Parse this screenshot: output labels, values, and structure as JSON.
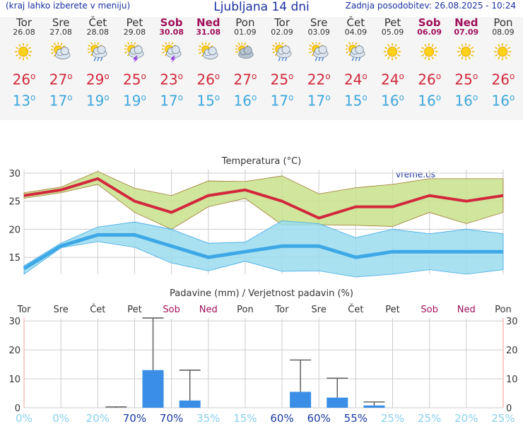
{
  "header": {
    "hint": "(kraj lahko izberete v meniju)",
    "title": "Ljubljana 14 dni",
    "update": "Zadnja posodobitev: 26.08.2025 - 10:24"
  },
  "days": [
    {
      "name": "Tor",
      "date": "26.08",
      "weekend": false,
      "icon": "sun-icon",
      "tmax": "26",
      "tmin": "13"
    },
    {
      "name": "Sre",
      "date": "27.08",
      "weekend": false,
      "icon": "sun-cloud-icon",
      "tmax": "27",
      "tmin": "17"
    },
    {
      "name": "Čet",
      "date": "28.08",
      "weekend": false,
      "icon": "sun-cloud-rain-icon",
      "tmax": "29",
      "tmin": "19"
    },
    {
      "name": "Pet",
      "date": "29.08",
      "weekend": false,
      "icon": "thunderstorm-icon",
      "tmax": "25",
      "tmin": "19"
    },
    {
      "name": "Sob",
      "date": "30.08",
      "weekend": true,
      "icon": "thunderstorm-icon",
      "tmax": "23",
      "tmin": "17"
    },
    {
      "name": "Ned",
      "date": "31.08",
      "weekend": true,
      "icon": "sun-cloud-icon",
      "tmax": "26",
      "tmin": "15"
    },
    {
      "name": "Pon",
      "date": "01.09",
      "weekend": false,
      "icon": "cloud-icon",
      "tmax": "27",
      "tmin": "16"
    },
    {
      "name": "Tor",
      "date": "02.09",
      "weekend": false,
      "icon": "sun-cloud-rain-icon",
      "tmax": "25",
      "tmin": "17"
    },
    {
      "name": "Sre",
      "date": "03.09",
      "weekend": false,
      "icon": "sun-cloud-rain-icon",
      "tmax": "22",
      "tmin": "17"
    },
    {
      "name": "Čet",
      "date": "04.09",
      "weekend": false,
      "icon": "sun-cloud-rain-icon",
      "tmax": "24",
      "tmin": "15"
    },
    {
      "name": "Pet",
      "date": "05.09",
      "weekend": false,
      "icon": "sun-icon",
      "tmax": "24",
      "tmin": "16"
    },
    {
      "name": "Sob",
      "date": "06.09",
      "weekend": true,
      "icon": "sun-icon",
      "tmax": "26",
      "tmin": "16"
    },
    {
      "name": "Ned",
      "date": "07.09",
      "weekend": true,
      "icon": "sun-icon",
      "tmax": "25",
      "tmin": "16"
    },
    {
      "name": "Pon",
      "date": "08.09",
      "weekend": false,
      "icon": "sun-icon",
      "tmax": "26",
      "tmin": "16"
    }
  ],
  "chart_data": [
    {
      "type": "area",
      "title": "Temperatura (°C)",
      "watermark": "vreme.us",
      "ylim": [
        12,
        31
      ],
      "yticks": [
        15,
        20,
        25,
        30
      ],
      "grid": true,
      "colors": {
        "max_line": "#d2283c",
        "max_band": "#c8e28c",
        "min_line": "#3ea8e6",
        "min_band": "#9adcee"
      },
      "series": [
        {
          "values": [
            26,
            27,
            29,
            25,
            23,
            26,
            27,
            25,
            22,
            24,
            24,
            26,
            25,
            26
          ]
        },
        {
          "values": [
            13,
            17,
            19,
            19,
            17,
            15,
            16,
            17,
            17,
            15,
            16,
            16,
            16,
            16
          ]
        },
        {
          "values": [
            26.5,
            27.5,
            30.3,
            27.3,
            26,
            28.6,
            28.5,
            29.5,
            26.3,
            27.4,
            28,
            29,
            29,
            29
          ]
        },
        {
          "values": [
            25.5,
            26.5,
            28,
            23,
            20,
            24,
            25.5,
            20.8,
            20.8,
            20.7,
            20.5,
            23,
            21,
            23
          ]
        },
        {
          "values": [
            13.5,
            17.5,
            20.4,
            21.3,
            20,
            17.5,
            17.7,
            21.5,
            21,
            18.5,
            20,
            19.2,
            20,
            19.2
          ]
        },
        {
          "values": [
            12,
            16.7,
            17.8,
            16.8,
            14,
            12.6,
            14.3,
            12.5,
            12.6,
            11.5,
            12,
            12.8,
            12,
            12.8
          ]
        }
      ]
    },
    {
      "type": "bar",
      "title": "Padavine (mm) / Verjetnost padavin (%)",
      "categories": [
        "Tor",
        "Sre",
        "Čet",
        "Pet",
        "Sob",
        "Ned",
        "Pon",
        "Tor",
        "Sre",
        "Čet",
        "Pet",
        "Sob",
        "Ned",
        "Pon"
      ],
      "ylim": [
        0,
        31
      ],
      "yticks": [
        0,
        10,
        20,
        30
      ],
      "values": [
        0,
        0,
        0,
        13,
        2.5,
        0,
        0,
        5.5,
        3.5,
        0.8,
        0,
        0,
        0,
        0
      ],
      "error_high": [
        0,
        0,
        0.3,
        31,
        13,
        0,
        0,
        16.5,
        10.2,
        2,
        0,
        0,
        0,
        0
      ],
      "probability": [
        "0%",
        "0%",
        "20%",
        "70%",
        "70%",
        "35%",
        "15%",
        "60%",
        "60%",
        "55%",
        "25%",
        "25%",
        "20%",
        "25%"
      ],
      "colors": {
        "bar": "#3a8ee6",
        "whisker": "#555555",
        "prob_high": "#1a3aa0",
        "prob_low": "#8ad0ee"
      }
    }
  ]
}
